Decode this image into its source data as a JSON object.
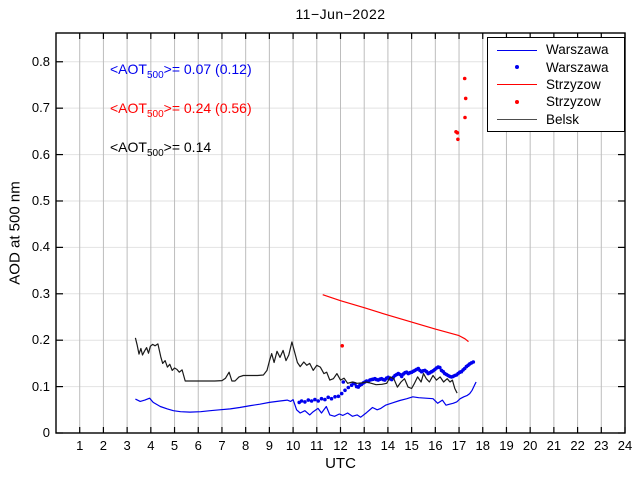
{
  "title": "11−Jun−2022",
  "axes": {
    "xlabel": "UTC",
    "ylabel": "AOD at 500 nm"
  },
  "annotations": [
    {
      "pre": "<AOT",
      "sub": "500",
      "rest": ">= 0.07 (0.12)",
      "color": "#0000ee",
      "station": "Warszawa"
    },
    {
      "pre": "<AOT",
      "sub": "500",
      "rest": ">= 0.24 (0.56)",
      "color": "#ff0000",
      "station": "Strzyzow"
    },
    {
      "pre": "<AOT",
      "sub": "500",
      "rest": ">= 0.14",
      "color": "#000000",
      "station": "Belsk"
    }
  ],
  "legend": {
    "entries": [
      {
        "label": "Warszawa",
        "type": "line",
        "color": "#0000ee"
      },
      {
        "label": "Warszawa",
        "type": "dot",
        "color": "#0000ee"
      },
      {
        "label": "Strzyzow",
        "type": "line",
        "color": "#ff0000"
      },
      {
        "label": "Strzyzow",
        "type": "dot",
        "color": "#ff0000"
      },
      {
        "label": "Belsk",
        "type": "line",
        "color": "#4d4d4d"
      }
    ]
  },
  "chart_data": {
    "type": "line",
    "title": "11−Jun−2022",
    "xlabel": "UTC",
    "ylabel": "AOD at 500 nm",
    "xlim": [
      0,
      24
    ],
    "ylim": [
      0,
      0.862
    ],
    "xticks": [
      1,
      2,
      3,
      4,
      5,
      6,
      7,
      8,
      9,
      10,
      11,
      12,
      13,
      14,
      15,
      16,
      17,
      18,
      19,
      20,
      21,
      22,
      23,
      24
    ],
    "yticks": [
      0,
      0.1,
      0.2,
      0.3,
      0.4,
      0.5,
      0.6,
      0.7,
      0.8
    ],
    "grid": true,
    "grid_color_vertical": "#bdbdbd",
    "grid_color_horizontal": "#e2e2e2",
    "legend_position": "upper-right",
    "series": [
      {
        "name": "Warszawa",
        "style": "line",
        "color": "#0000ee",
        "points": [
          [
            3.35,
            0.073
          ],
          [
            3.55,
            0.068
          ],
          [
            3.75,
            0.071
          ],
          [
            3.95,
            0.075
          ],
          [
            4.1,
            0.066
          ],
          [
            4.4,
            0.057
          ],
          [
            4.7,
            0.052
          ],
          [
            4.95,
            0.048
          ],
          [
            5.25,
            0.046
          ],
          [
            5.65,
            0.045
          ],
          [
            6.1,
            0.046
          ],
          [
            6.5,
            0.048
          ],
          [
            6.9,
            0.05
          ],
          [
            7.35,
            0.052
          ],
          [
            7.75,
            0.055
          ],
          [
            8.2,
            0.059
          ],
          [
            8.6,
            0.062
          ],
          [
            9.0,
            0.066
          ],
          [
            9.45,
            0.069
          ],
          [
            9.75,
            0.071
          ],
          [
            9.9,
            0.068
          ],
          [
            10.0,
            0.072
          ],
          [
            10.15,
            0.05
          ],
          [
            10.3,
            0.043
          ],
          [
            10.5,
            0.048
          ],
          [
            10.7,
            0.039
          ],
          [
            10.85,
            0.046
          ],
          [
            11.05,
            0.053
          ],
          [
            11.2,
            0.043
          ],
          [
            11.4,
            0.057
          ],
          [
            11.55,
            0.039
          ],
          [
            11.75,
            0.036
          ],
          [
            11.95,
            0.041
          ],
          [
            12.1,
            0.038
          ],
          [
            12.3,
            0.043
          ],
          [
            12.5,
            0.036
          ],
          [
            12.7,
            0.039
          ],
          [
            12.85,
            0.034
          ],
          [
            13.1,
            0.044
          ],
          [
            13.35,
            0.055
          ],
          [
            13.55,
            0.05
          ],
          [
            13.7,
            0.053
          ],
          [
            13.9,
            0.06
          ],
          [
            14.2,
            0.065
          ],
          [
            14.5,
            0.07
          ],
          [
            14.8,
            0.074
          ],
          [
            15.05,
            0.078
          ],
          [
            15.3,
            0.076
          ],
          [
            15.6,
            0.075
          ],
          [
            15.9,
            0.074
          ],
          [
            16.1,
            0.064
          ],
          [
            16.3,
            0.071
          ],
          [
            16.45,
            0.06
          ],
          [
            16.6,
            0.062
          ],
          [
            16.75,
            0.064
          ],
          [
            16.9,
            0.067
          ],
          [
            17.05,
            0.074
          ],
          [
            17.2,
            0.078
          ],
          [
            17.35,
            0.081
          ],
          [
            17.45,
            0.085
          ],
          [
            17.55,
            0.092
          ],
          [
            17.65,
            0.103
          ],
          [
            17.72,
            0.11
          ]
        ]
      },
      {
        "name": "Warszawa",
        "style": "scatter",
        "color": "#0000ee",
        "points": [
          [
            10.26,
            0.066
          ],
          [
            10.36,
            0.069
          ],
          [
            10.5,
            0.067
          ],
          [
            10.64,
            0.071
          ],
          [
            10.78,
            0.069
          ],
          [
            10.92,
            0.072
          ],
          [
            11.06,
            0.069
          ],
          [
            11.2,
            0.074
          ],
          [
            11.34,
            0.072
          ],
          [
            11.48,
            0.077
          ],
          [
            11.62,
            0.074
          ],
          [
            11.77,
            0.078
          ],
          [
            11.91,
            0.079
          ],
          [
            12.05,
            0.085
          ],
          [
            12.12,
            0.11
          ],
          [
            12.19,
            0.092
          ],
          [
            12.33,
            0.098
          ],
          [
            12.47,
            0.103
          ],
          [
            12.55,
            0.107
          ],
          [
            12.61,
            0.106
          ],
          [
            12.68,
            0.1
          ],
          [
            12.75,
            0.099
          ],
          [
            12.82,
            0.103
          ],
          [
            12.89,
            0.105
          ],
          [
            12.96,
            0.108
          ],
          [
            13.03,
            0.11
          ],
          [
            13.1,
            0.112
          ],
          [
            13.17,
            0.111
          ],
          [
            13.24,
            0.114
          ],
          [
            13.31,
            0.115
          ],
          [
            13.38,
            0.116
          ],
          [
            13.45,
            0.117
          ],
          [
            13.52,
            0.115
          ],
          [
            13.59,
            0.114
          ],
          [
            13.66,
            0.116
          ],
          [
            13.73,
            0.117
          ],
          [
            13.8,
            0.115
          ],
          [
            13.87,
            0.114
          ],
          [
            13.94,
            0.118
          ],
          [
            14.01,
            0.12
          ],
          [
            14.08,
            0.117
          ],
          [
            14.16,
            0.115
          ],
          [
            14.23,
            0.12
          ],
          [
            14.3,
            0.124
          ],
          [
            14.37,
            0.126
          ],
          [
            14.44,
            0.128
          ],
          [
            14.51,
            0.126
          ],
          [
            14.58,
            0.122
          ],
          [
            14.65,
            0.127
          ],
          [
            14.72,
            0.13
          ],
          [
            14.79,
            0.131
          ],
          [
            14.86,
            0.128
          ],
          [
            14.93,
            0.13
          ],
          [
            15.0,
            0.131
          ],
          [
            15.07,
            0.133
          ],
          [
            15.14,
            0.135
          ],
          [
            15.21,
            0.137
          ],
          [
            15.28,
            0.139
          ],
          [
            15.35,
            0.135
          ],
          [
            15.42,
            0.132
          ],
          [
            15.49,
            0.134
          ],
          [
            15.56,
            0.135
          ],
          [
            15.63,
            0.132
          ],
          [
            15.7,
            0.128
          ],
          [
            15.77,
            0.13
          ],
          [
            15.84,
            0.132
          ],
          [
            15.91,
            0.134
          ],
          [
            15.98,
            0.137
          ],
          [
            16.05,
            0.14
          ],
          [
            16.12,
            0.142
          ],
          [
            16.19,
            0.141
          ],
          [
            16.26,
            0.135
          ],
          [
            16.33,
            0.132
          ],
          [
            16.4,
            0.128
          ],
          [
            16.47,
            0.126
          ],
          [
            16.54,
            0.124
          ],
          [
            16.61,
            0.122
          ],
          [
            16.68,
            0.121
          ],
          [
            16.75,
            0.122
          ],
          [
            16.82,
            0.124
          ],
          [
            16.89,
            0.125
          ],
          [
            16.96,
            0.128
          ],
          [
            17.03,
            0.131
          ],
          [
            17.1,
            0.132
          ],
          [
            17.17,
            0.136
          ],
          [
            17.24,
            0.139
          ],
          [
            17.31,
            0.143
          ],
          [
            17.38,
            0.146
          ],
          [
            17.45,
            0.149
          ],
          [
            17.52,
            0.151
          ],
          [
            17.6,
            0.153
          ]
        ]
      },
      {
        "name": "Strzyzow",
        "style": "line",
        "color": "#ff0000",
        "points": [
          [
            11.25,
            0.298
          ],
          [
            12.0,
            0.285
          ],
          [
            13.0,
            0.27
          ],
          [
            14.0,
            0.254
          ],
          [
            15.0,
            0.239
          ],
          [
            16.0,
            0.224
          ],
          [
            16.5,
            0.217
          ],
          [
            17.0,
            0.21
          ],
          [
            17.25,
            0.203
          ],
          [
            17.4,
            0.197
          ]
        ]
      },
      {
        "name": "Strzyzow",
        "style": "scatter",
        "color": "#ff0000",
        "points": [
          [
            12.07,
            0.188
          ],
          [
            16.87,
            0.649
          ],
          [
            16.93,
            0.647
          ],
          [
            16.95,
            0.633
          ],
          [
            17.24,
            0.764
          ],
          [
            17.25,
            0.68
          ],
          [
            17.28,
            0.721
          ]
        ]
      },
      {
        "name": "Belsk",
        "style": "line",
        "color": "#1a1a1a",
        "points": [
          [
            3.35,
            0.205
          ],
          [
            3.42,
            0.19
          ],
          [
            3.5,
            0.17
          ],
          [
            3.58,
            0.182
          ],
          [
            3.65,
            0.168
          ],
          [
            3.73,
            0.176
          ],
          [
            3.82,
            0.184
          ],
          [
            3.9,
            0.172
          ],
          [
            3.98,
            0.187
          ],
          [
            4.08,
            0.191
          ],
          [
            4.18,
            0.188
          ],
          [
            4.3,
            0.192
          ],
          [
            4.42,
            0.164
          ],
          [
            4.5,
            0.15
          ],
          [
            4.6,
            0.156
          ],
          [
            4.7,
            0.142
          ],
          [
            4.8,
            0.148
          ],
          [
            4.9,
            0.135
          ],
          [
            5.0,
            0.14
          ],
          [
            5.1,
            0.137
          ],
          [
            5.2,
            0.131
          ],
          [
            5.32,
            0.136
          ],
          [
            5.45,
            0.112
          ],
          [
            5.8,
            0.112
          ],
          [
            6.1,
            0.112
          ],
          [
            6.4,
            0.112
          ],
          [
            6.7,
            0.112
          ],
          [
            7.0,
            0.113
          ],
          [
            7.15,
            0.118
          ],
          [
            7.3,
            0.131
          ],
          [
            7.42,
            0.112
          ],
          [
            7.55,
            0.112
          ],
          [
            7.72,
            0.121
          ],
          [
            7.9,
            0.124
          ],
          [
            8.2,
            0.124
          ],
          [
            8.5,
            0.124
          ],
          [
            8.75,
            0.125
          ],
          [
            8.9,
            0.135
          ],
          [
            9.0,
            0.155
          ],
          [
            9.1,
            0.171
          ],
          [
            9.2,
            0.152
          ],
          [
            9.32,
            0.176
          ],
          [
            9.45,
            0.163
          ],
          [
            9.58,
            0.178
          ],
          [
            9.7,
            0.156
          ],
          [
            9.82,
            0.168
          ],
          [
            9.95,
            0.196
          ],
          [
            10.05,
            0.177
          ],
          [
            10.18,
            0.152
          ],
          [
            10.3,
            0.143
          ],
          [
            10.45,
            0.153
          ],
          [
            10.58,
            0.146
          ],
          [
            10.7,
            0.15
          ],
          [
            10.85,
            0.135
          ],
          [
            11.0,
            0.146
          ],
          [
            11.15,
            0.142
          ],
          [
            11.3,
            0.128
          ],
          [
            11.42,
            0.131
          ],
          [
            11.55,
            0.114
          ],
          [
            11.7,
            0.117
          ],
          [
            11.85,
            0.128
          ],
          [
            12.0,
            0.114
          ],
          [
            12.15,
            0.118
          ],
          [
            12.3,
            0.107
          ],
          [
            12.5,
            0.11
          ],
          [
            12.7,
            0.107
          ],
          [
            12.9,
            0.108
          ],
          [
            13.1,
            0.11
          ],
          [
            13.3,
            0.107
          ],
          [
            13.5,
            0.104
          ],
          [
            13.75,
            0.105
          ],
          [
            13.95,
            0.107
          ],
          [
            14.1,
            0.121
          ],
          [
            14.25,
            0.117
          ],
          [
            14.4,
            0.099
          ],
          [
            14.55,
            0.11
          ],
          [
            14.7,
            0.117
          ],
          [
            14.85,
            0.099
          ],
          [
            15.0,
            0.096
          ],
          [
            15.12,
            0.107
          ],
          [
            15.25,
            0.121
          ],
          [
            15.4,
            0.11
          ],
          [
            15.5,
            0.128
          ],
          [
            15.62,
            0.117
          ],
          [
            15.75,
            0.11
          ],
          [
            15.9,
            0.124
          ],
          [
            16.05,
            0.114
          ],
          [
            16.2,
            0.121
          ],
          [
            16.35,
            0.11
          ],
          [
            16.5,
            0.117
          ],
          [
            16.62,
            0.11
          ],
          [
            16.72,
            0.114
          ],
          [
            16.82,
            0.096
          ],
          [
            16.92,
            0.086
          ]
        ]
      }
    ]
  }
}
